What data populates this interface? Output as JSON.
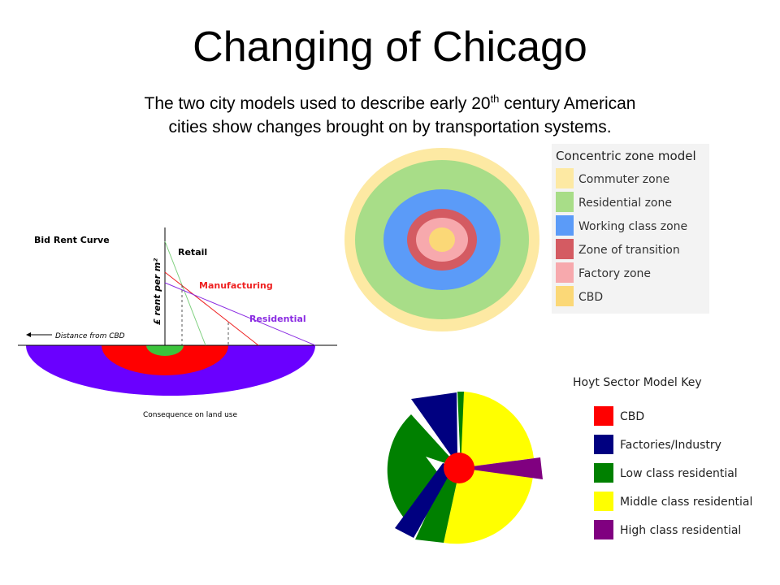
{
  "title": "Changing of Chicago",
  "subtitle": {
    "line1_before": "The two city models used to describe early 20",
    "line1_sup": "th",
    "line1_after": " century American",
    "line2": "cities show changes brought on by transportation systems."
  },
  "bid_rent": {
    "heading": "Bid Rent Curve",
    "y_axis": "£ rent per m²",
    "x_axis": "Distance from CBD",
    "caption": "Consequence on land use",
    "lines": [
      {
        "label": "Retail",
        "color": "#7fd07f"
      },
      {
        "label": "Manufacturing",
        "color": "#ee2222"
      },
      {
        "label": "Residential",
        "color": "#8a2be2"
      }
    ]
  },
  "concentric": {
    "heading": "Concentric zone model",
    "zones": [
      {
        "label": "Commuter zone",
        "color": "#fde9a3"
      },
      {
        "label": "Residential zone",
        "color": "#a8dd88"
      },
      {
        "label": "Working class zone",
        "color": "#5b9bf8"
      },
      {
        "label": "Zone of transition",
        "color": "#d45b62"
      },
      {
        "label": "Factory zone",
        "color": "#f7a9ad"
      },
      {
        "label": "CBD",
        "color": "#fbd877"
      }
    ]
  },
  "hoyt": {
    "heading": "Hoyt Sector Model Key",
    "keys": [
      {
        "label": "CBD",
        "color": "#ff0000"
      },
      {
        "label": "Factories/Industry",
        "color": "#000080"
      },
      {
        "label": "Low class residential",
        "color": "#008000"
      },
      {
        "label": "Middle class residential",
        "color": "#ffff00"
      },
      {
        "label": "High class residential",
        "color": "#800080"
      }
    ]
  }
}
